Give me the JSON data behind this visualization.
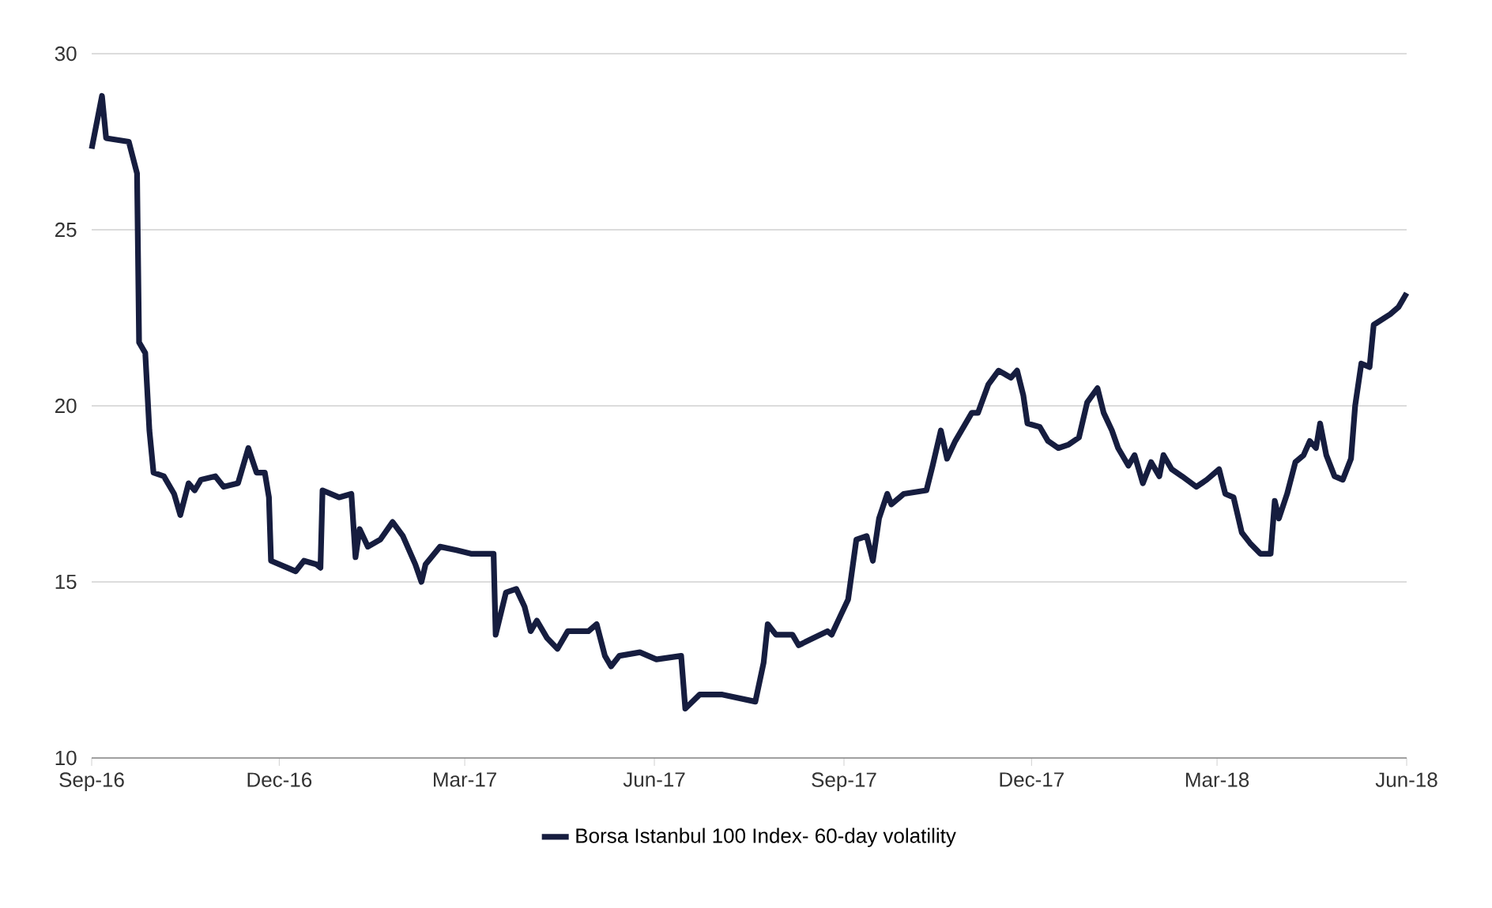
{
  "chart_data": {
    "type": "line",
    "x": [
      "2016-09-01",
      "2016-09-06",
      "2016-09-08",
      "2016-09-19",
      "2016-09-23",
      "2016-09-24",
      "2016-09-27",
      "2016-09-29",
      "2016-10-01",
      "2016-10-06",
      "2016-10-11",
      "2016-10-14",
      "2016-10-18",
      "2016-10-21",
      "2016-10-24",
      "2016-10-31",
      "2016-11-04",
      "2016-11-11",
      "2016-11-16",
      "2016-11-20",
      "2016-11-24",
      "2016-11-26",
      "2016-11-27",
      "2016-12-05",
      "2016-12-09",
      "2016-12-13",
      "2016-12-19",
      "2016-12-21",
      "2016-12-22",
      "2016-12-30",
      "2017-01-05",
      "2017-01-07",
      "2017-01-09",
      "2017-01-13",
      "2017-01-19",
      "2017-01-25",
      "2017-01-30",
      "2017-02-05",
      "2017-02-08",
      "2017-02-10",
      "2017-02-17",
      "2017-02-25",
      "2017-03-04",
      "2017-03-15",
      "2017-03-16",
      "2017-03-21",
      "2017-03-26",
      "2017-03-30",
      "2017-04-02",
      "2017-04-05",
      "2017-04-10",
      "2017-04-15",
      "2017-04-20",
      "2017-04-30",
      "2017-05-04",
      "2017-05-08",
      "2017-05-11",
      "2017-05-15",
      "2017-05-25",
      "2017-06-02",
      "2017-06-14",
      "2017-06-16",
      "2017-06-23",
      "2017-07-04",
      "2017-07-20",
      "2017-07-24",
      "2017-07-26",
      "2017-07-30",
      "2017-08-07",
      "2017-08-10",
      "2017-08-17",
      "2017-08-24",
      "2017-08-26",
      "2017-08-30",
      "2017-09-03",
      "2017-09-07",
      "2017-09-12",
      "2017-09-15",
      "2017-09-18",
      "2017-09-22",
      "2017-09-24",
      "2017-09-30",
      "2017-10-11",
      "2017-10-14",
      "2017-10-18",
      "2017-10-21",
      "2017-10-25",
      "2017-11-02",
      "2017-11-05",
      "2017-11-10",
      "2017-11-15",
      "2017-11-21",
      "2017-11-24",
      "2017-11-27",
      "2017-11-29",
      "2017-12-05",
      "2017-12-09",
      "2017-12-14",
      "2017-12-19",
      "2017-12-24",
      "2017-12-28",
      "2018-01-02",
      "2018-01-05",
      "2018-01-09",
      "2018-01-12",
      "2018-01-17",
      "2018-01-20",
      "2018-01-24",
      "2018-01-28",
      "2018-02-01",
      "2018-02-03",
      "2018-02-07",
      "2018-02-12",
      "2018-02-19",
      "2018-02-24",
      "2018-03-02",
      "2018-03-05",
      "2018-03-09",
      "2018-03-13",
      "2018-03-17",
      "2018-03-22",
      "2018-03-27",
      "2018-03-29",
      "2018-03-31",
      "2018-04-04",
      "2018-04-08",
      "2018-04-12",
      "2018-04-15",
      "2018-04-18",
      "2018-04-20",
      "2018-04-23",
      "2018-04-27",
      "2018-05-01",
      "2018-05-05",
      "2018-05-07",
      "2018-05-10",
      "2018-05-14",
      "2018-05-16",
      "2018-05-24",
      "2018-05-28",
      "2018-06-01"
    ],
    "series": [
      {
        "name": "Borsa Istanbul 100 Index- 60-day volatility",
        "color": "#161d3f",
        "values": [
          27.3,
          28.8,
          27.6,
          27.5,
          26.6,
          21.8,
          21.5,
          19.3,
          18.1,
          18.0,
          17.5,
          16.9,
          17.8,
          17.6,
          17.9,
          18.0,
          17.7,
          17.8,
          18.8,
          18.1,
          18.1,
          17.4,
          15.6,
          15.4,
          15.3,
          15.6,
          15.5,
          15.4,
          17.6,
          17.4,
          17.5,
          15.7,
          16.5,
          16.0,
          16.2,
          16.7,
          16.3,
          15.5,
          15.0,
          15.5,
          16.0,
          15.9,
          15.8,
          15.8,
          13.5,
          14.7,
          14.8,
          14.3,
          13.6,
          13.9,
          13.4,
          13.1,
          13.6,
          13.6,
          13.8,
          12.9,
          12.6,
          12.9,
          13.0,
          12.8,
          12.9,
          11.4,
          11.8,
          11.8,
          11.6,
          12.7,
          13.8,
          13.5,
          13.5,
          13.2,
          13.4,
          13.6,
          13.5,
          14.0,
          14.5,
          16.2,
          16.3,
          15.6,
          16.8,
          17.5,
          17.2,
          17.5,
          17.6,
          18.3,
          19.3,
          18.5,
          19.0,
          19.8,
          19.8,
          20.6,
          21.0,
          20.8,
          21.0,
          20.3,
          19.5,
          19.4,
          19.0,
          18.8,
          18.9,
          19.1,
          20.1,
          20.5,
          19.8,
          19.3,
          18.8,
          18.3,
          18.6,
          17.8,
          18.4,
          18.0,
          18.6,
          18.2,
          18.0,
          17.7,
          17.9,
          18.2,
          17.5,
          17.4,
          16.4,
          16.1,
          15.8,
          15.8,
          17.3,
          16.8,
          17.5,
          18.4,
          18.6,
          19.0,
          18.8,
          19.5,
          18.6,
          18.0,
          17.9,
          18.5,
          20.0,
          21.2,
          21.1,
          22.3,
          22.6,
          22.8,
          23.2
        ]
      }
    ],
    "xlim": [
      "2016-09-01",
      "2018-06-01"
    ],
    "xticks": [
      {
        "value": "2016-09-01",
        "label": "Sep-16"
      },
      {
        "value": "2016-12-01",
        "label": "Dec-16"
      },
      {
        "value": "2017-03-01",
        "label": "Mar-17"
      },
      {
        "value": "2017-06-01",
        "label": "Jun-17"
      },
      {
        "value": "2017-09-01",
        "label": "Sep-17"
      },
      {
        "value": "2017-12-01",
        "label": "Dec-17"
      },
      {
        "value": "2018-03-01",
        "label": "Mar-18"
      },
      {
        "value": "2018-06-01",
        "label": "Jun-18"
      }
    ],
    "ylim": [
      10,
      30
    ],
    "yticks": [
      10,
      15,
      20,
      25,
      30
    ],
    "grid": "y",
    "legend": "bottom",
    "marker": "none",
    "line_style": "solid"
  }
}
